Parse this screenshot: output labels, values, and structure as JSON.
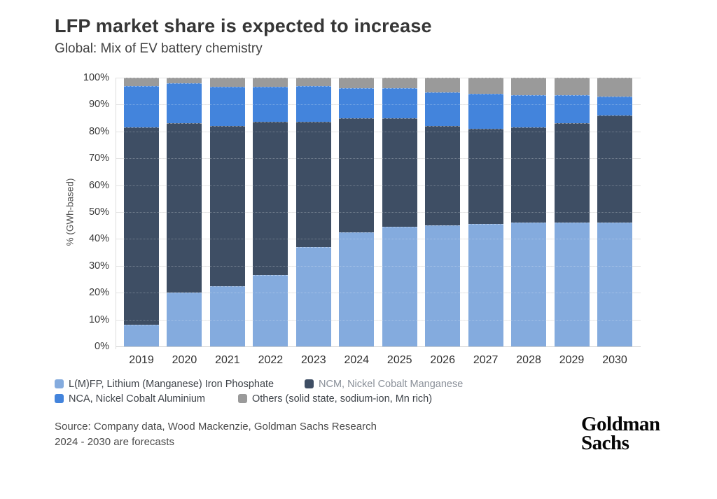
{
  "header": {
    "title": "LFP market share is expected to increase",
    "subtitle": "Global: Mix of EV battery chemistry"
  },
  "chart_data": {
    "type": "bar",
    "stacked": true,
    "categories": [
      "2019",
      "2020",
      "2021",
      "2022",
      "2023",
      "2024",
      "2025",
      "2026",
      "2027",
      "2028",
      "2029",
      "2030"
    ],
    "series": [
      {
        "id": "lfp",
        "name": "L(M)FP, Lithium (Manganese) Iron Phosphate",
        "color": "#84ABDE",
        "values": [
          8,
          20,
          22.5,
          26.5,
          37,
          42.5,
          44.5,
          45,
          45.5,
          46,
          46,
          46
        ]
      },
      {
        "id": "ncm",
        "name": "NCM, Nickel Cobalt Manganese",
        "color": "#3E4E64",
        "values": [
          73.5,
          63,
          59.5,
          57,
          46.5,
          42.5,
          40.5,
          37,
          35.5,
          35.5,
          37,
          40
        ]
      },
      {
        "id": "nca",
        "name": "NCA, Nickel Cobalt Aluminium",
        "color": "#4384DC",
        "values": [
          15.5,
          15,
          14.5,
          13,
          13.5,
          11,
          11,
          12.5,
          13,
          12,
          10.5,
          7
        ]
      },
      {
        "id": "others",
        "name": "Others (solid state, sodium-ion, Mn rich)",
        "color": "#9A9A9A",
        "values": [
          3,
          2,
          3.5,
          3.5,
          3,
          4,
          4,
          5.5,
          6,
          6.5,
          6.5,
          7
        ]
      }
    ],
    "title": "LFP market share is expected to increase",
    "subtitle": "Global: Mix of EV battery chemistry",
    "xlabel": "",
    "ylabel": "% (GWh-based)",
    "ylim": [
      0,
      100
    ],
    "y_tick_step": 10,
    "y_ticks": [
      "0%",
      "10%",
      "20%",
      "30%",
      "40%",
      "50%",
      "60%",
      "70%",
      "80%",
      "90%",
      "100%"
    ],
    "grid": true,
    "legend_position": "bottom"
  },
  "legend": {
    "rows": [
      [
        0,
        1
      ],
      [
        2,
        3
      ]
    ],
    "muted_series": [
      1
    ]
  },
  "footer": {
    "source_line1": "Source: Company data, Wood Mackenzie, Goldman Sachs Research",
    "source_line2": "2024 - 2030 are forecasts",
    "logo_line1": "Goldman",
    "logo_line2": "Sachs"
  }
}
